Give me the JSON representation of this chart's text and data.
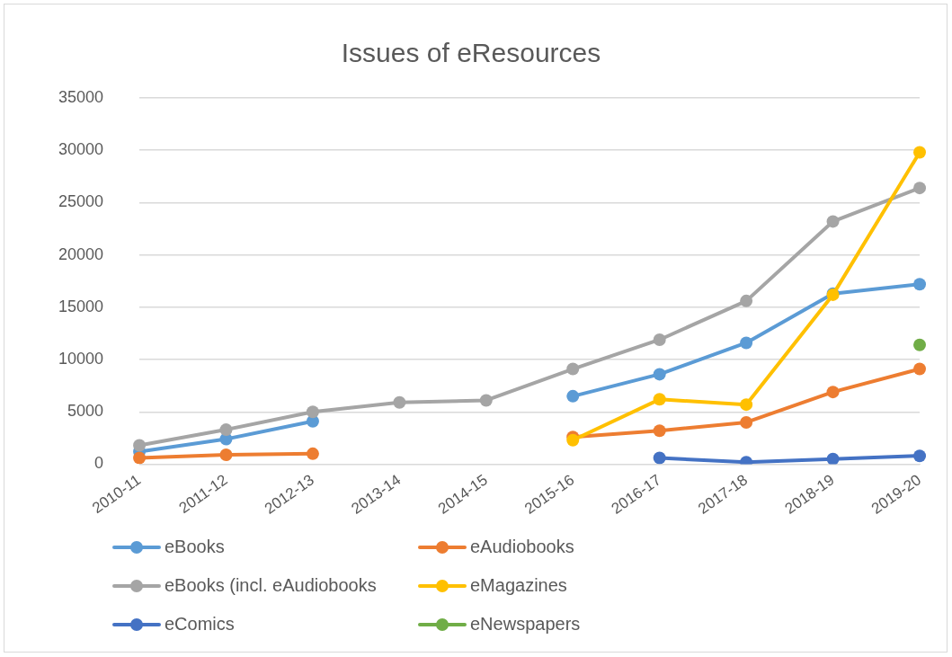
{
  "chart_data": {
    "type": "line",
    "title": "Issues of eResources",
    "categories": [
      "2010-11",
      "2011-12",
      "2012-13",
      "2013-14",
      "2014-15",
      "2015-16",
      "2016-17",
      "2017-18",
      "2018-19",
      "2019-20"
    ],
    "series": [
      {
        "name": "eBooks",
        "color": "#5b9bd5",
        "values": [
          1200,
          2400,
          4100,
          null,
          null,
          6500,
          8600,
          11600,
          16300,
          17200
        ]
      },
      {
        "name": "eAudiobooks",
        "color": "#ed7d31",
        "values": [
          600,
          900,
          1000,
          null,
          null,
          2600,
          3200,
          4000,
          6900,
          9100
        ]
      },
      {
        "name": "eBooks (incl. eAudiobooks",
        "color": "#a5a5a5",
        "values": [
          1800,
          3300,
          5000,
          5900,
          6100,
          9100,
          11900,
          15600,
          23200,
          26400
        ]
      },
      {
        "name": "eMagazines",
        "color": "#ffc000",
        "values": [
          null,
          null,
          null,
          null,
          null,
          2300,
          6200,
          5700,
          16200,
          29800
        ]
      },
      {
        "name": "eComics",
        "color": "#4472c4",
        "values": [
          null,
          null,
          null,
          null,
          null,
          null,
          600,
          200,
          500,
          800
        ]
      },
      {
        "name": "eNewspapers",
        "color": "#70ad47",
        "values": [
          null,
          null,
          null,
          null,
          null,
          null,
          null,
          null,
          null,
          11400
        ]
      }
    ],
    "ylim": [
      0,
      35000
    ],
    "yticks": [
      0,
      5000,
      10000,
      15000,
      20000,
      25000,
      30000,
      35000
    ],
    "grid": "y",
    "legend": "bottom",
    "marker": "circle",
    "line_style": "solid"
  }
}
